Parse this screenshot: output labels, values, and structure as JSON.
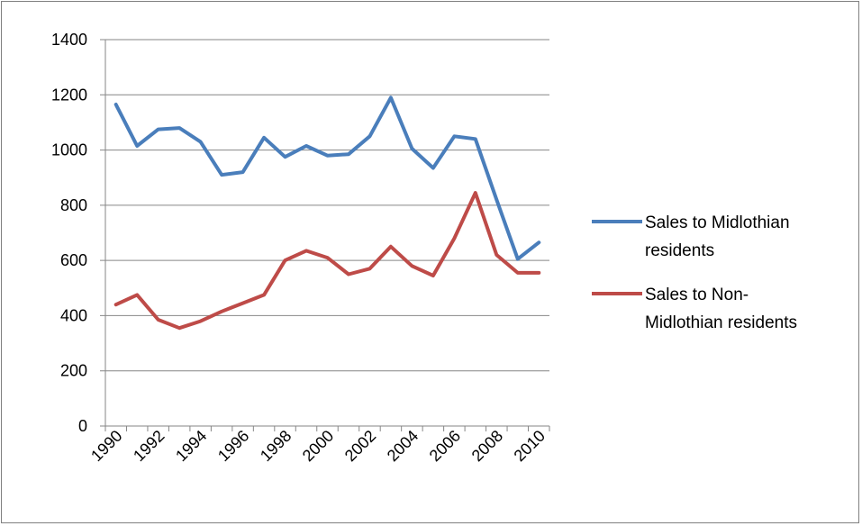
{
  "chart_data": {
    "type": "line",
    "title": "",
    "xlabel": "",
    "ylabel": "",
    "ylim": [
      0,
      1400
    ],
    "y_ticks": [
      "0",
      "200",
      "400",
      "600",
      "800",
      "1000",
      "1200",
      "1400"
    ],
    "x_tick_labels": [
      "1990",
      "1992",
      "1994",
      "1996",
      "1998",
      "2000",
      "2002",
      "2004",
      "2006",
      "2008",
      "2010"
    ],
    "x": [
      1990,
      1991,
      1992,
      1993,
      1994,
      1995,
      1996,
      1997,
      1998,
      1999,
      2000,
      2001,
      2002,
      2003,
      2004,
      2005,
      2006,
      2007,
      2008,
      2009,
      2010
    ],
    "grid": "horizontal",
    "legend_position": "right",
    "series": [
      {
        "name_lines": [
          "Sales to Midlothian",
          "residents"
        ],
        "color": "#4a7ebb",
        "values": [
          1165,
          1015,
          1075,
          1080,
          1030,
          910,
          920,
          1045,
          975,
          1015,
          980,
          985,
          1050,
          1190,
          1005,
          935,
          1050,
          1040,
          820,
          605,
          665
        ]
      },
      {
        "name_lines": [
          "Sales to Non-",
          "Midlothian residents"
        ],
        "color": "#be4b48",
        "values": [
          440,
          475,
          385,
          355,
          380,
          415,
          445,
          475,
          600,
          635,
          610,
          550,
          570,
          650,
          580,
          545,
          680,
          845,
          620,
          555,
          555
        ]
      }
    ]
  }
}
